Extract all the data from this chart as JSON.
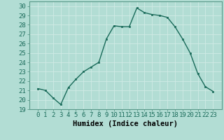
{
  "x": [
    0,
    1,
    2,
    3,
    4,
    5,
    6,
    7,
    8,
    9,
    10,
    11,
    12,
    13,
    14,
    15,
    16,
    17,
    18,
    19,
    20,
    21,
    22,
    23
  ],
  "y": [
    21.2,
    21.0,
    20.2,
    19.5,
    21.3,
    22.2,
    23.0,
    23.5,
    24.0,
    26.5,
    27.9,
    27.8,
    27.8,
    29.8,
    29.3,
    29.1,
    29.0,
    28.8,
    27.8,
    26.5,
    25.0,
    22.8,
    21.4,
    20.9
  ],
  "line_color": "#1a6b5a",
  "marker": "s",
  "marker_size": 2.0,
  "line_width": 1.0,
  "xlabel": "Humidex (Indice chaleur)",
  "ylim": [
    19,
    30.5
  ],
  "yticks": [
    19,
    20,
    21,
    22,
    23,
    24,
    25,
    26,
    27,
    28,
    29,
    30
  ],
  "xticks": [
    0,
    1,
    2,
    3,
    4,
    5,
    6,
    7,
    8,
    9,
    10,
    11,
    12,
    13,
    14,
    15,
    16,
    17,
    18,
    19,
    20,
    21,
    22,
    23
  ],
  "bg_color": "#b2ddd4",
  "grid_color": "#d0ebe5",
  "tick_fontsize": 6.5,
  "xlabel_fontsize": 7.5
}
